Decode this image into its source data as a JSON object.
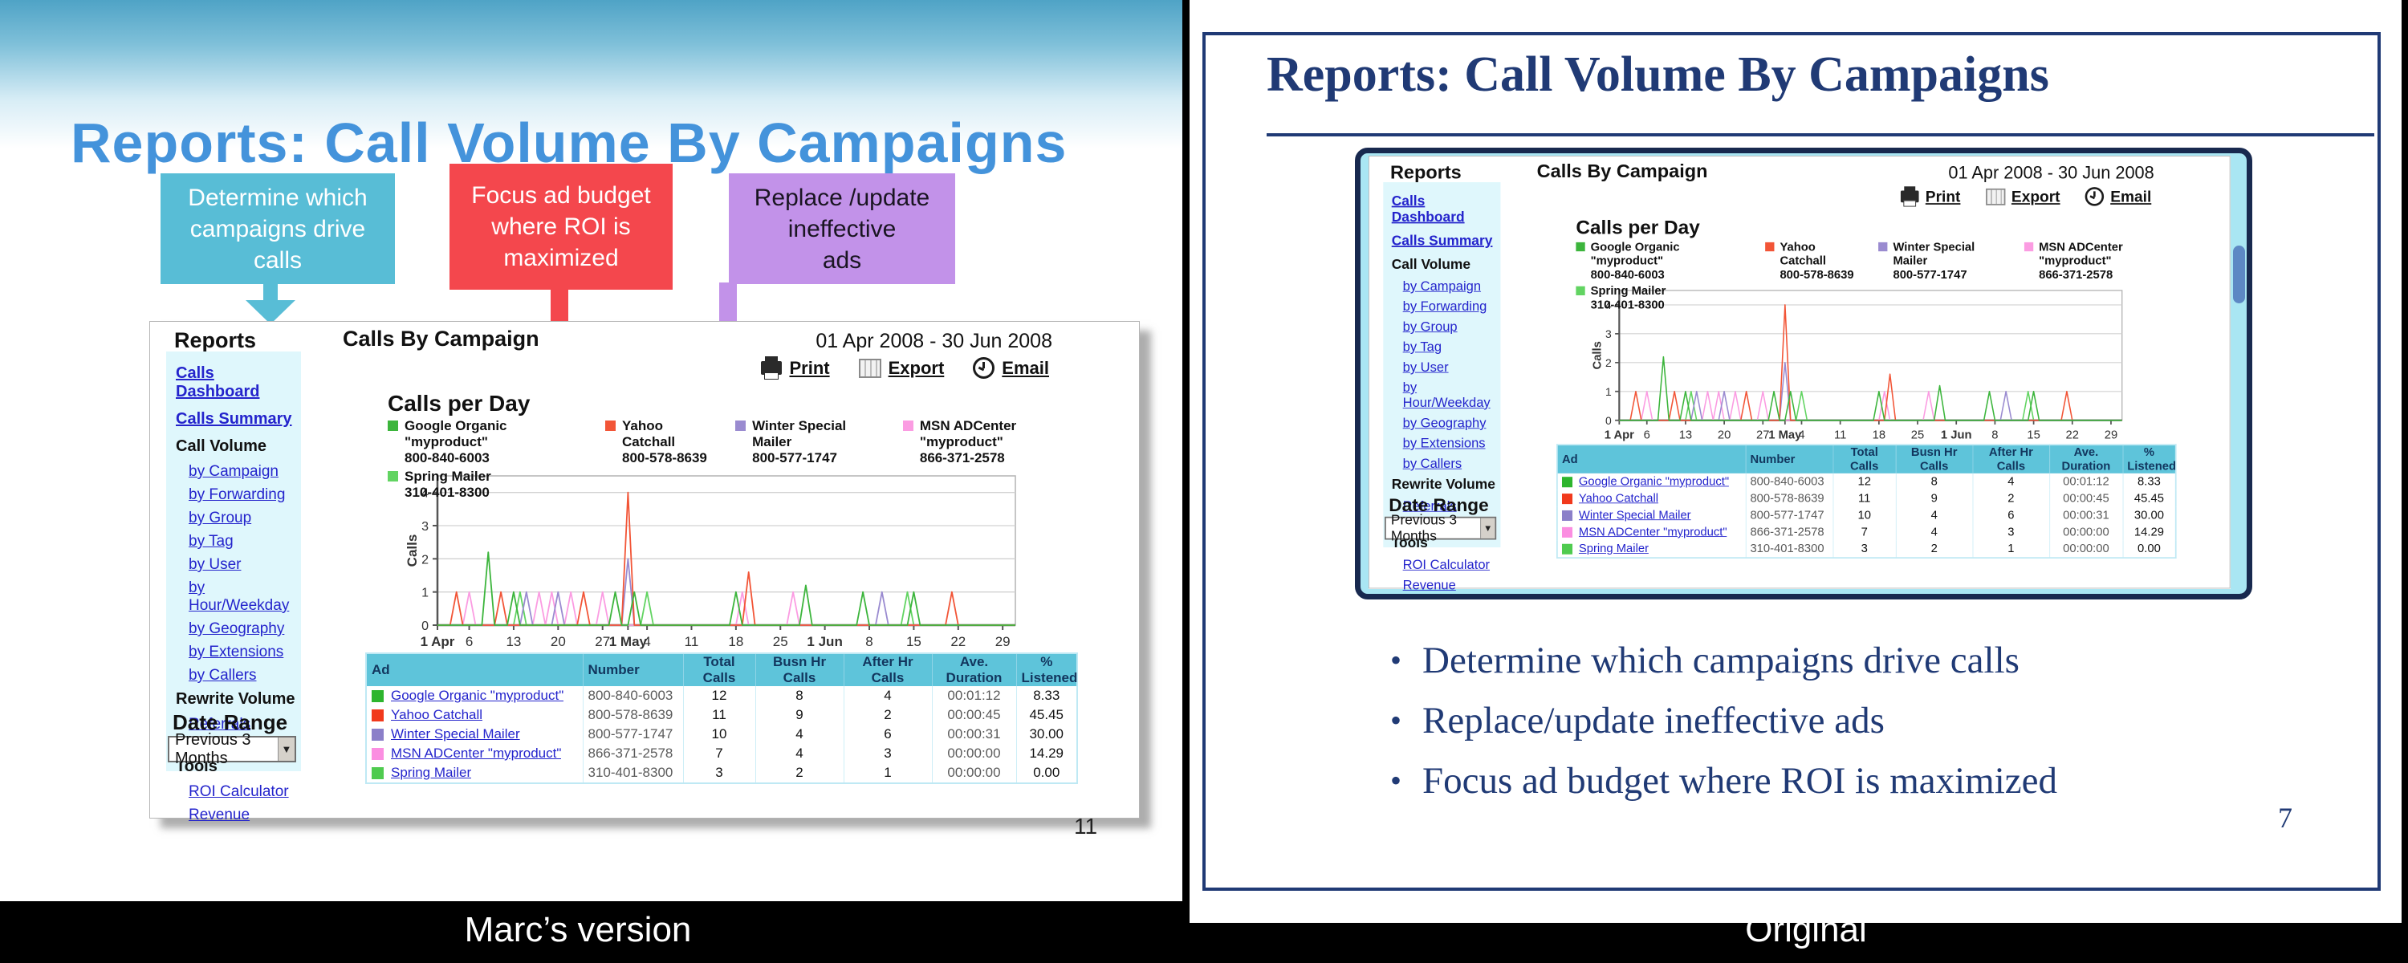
{
  "page": {
    "left_label": "Marc’s version",
    "right_label": "Original"
  },
  "left_slide": {
    "title": "Reports: Call Volume By Campaigns",
    "page_number": "11",
    "callouts": [
      {
        "text": "Determine which\ncampaigns drive\ncalls",
        "color": "#58bdd6"
      },
      {
        "text": "Focus ad budget\nwhere ROI is\nmaximized",
        "color": "#f4474d"
      },
      {
        "text": "Replace /update\nineffective\nads",
        "color": "#c292e9"
      }
    ]
  },
  "right_slide": {
    "title": "Reports: Call Volume By Campaigns",
    "page_number": "7",
    "bullets": [
      "Determine which campaigns drive calls",
      "Replace/update ineffective ads",
      "Focus ad budget where ROI is maximized"
    ]
  },
  "dashboard": {
    "brand": "Reports",
    "page_title": "Calls By Campaign",
    "date_range_text": "01 Apr 2008 - 30 Jun 2008",
    "actions": [
      {
        "label": "Print",
        "icon": "printer-icon"
      },
      {
        "label": "Export",
        "icon": "export-grid-icon"
      },
      {
        "label": "Email",
        "icon": "email-clock-icon"
      }
    ],
    "sidebar": {
      "top_links": [
        "Calls Dashboard",
        "Calls Summary"
      ],
      "sections": [
        {
          "header": "Call Volume",
          "links": [
            "by Campaign",
            "by Forwarding",
            "by Group",
            "by Tag",
            "by User",
            "by Hour/Weekday",
            "by Geography",
            "by Extensions",
            "by Callers"
          ]
        },
        {
          "header": "Rewrite Volume",
          "links": [
            "Referrals"
          ]
        },
        {
          "header": "Calculation Tools",
          "links": [
            "ROI Calculator",
            "Revenue"
          ]
        }
      ],
      "date_range_label": "Date Range",
      "date_range_value": "Previous 3 Months",
      "dropdown_icon": "▼"
    },
    "table": {
      "columns": [
        "Ad",
        "Number",
        "Total Calls",
        "Busn Hr Calls",
        "After Hr Calls",
        "Ave. Duration",
        "% Listened"
      ],
      "rows": [
        {
          "color": "#2db52d",
          "ad": "Google Organic \"myproduct\"",
          "number": "800-840-6003",
          "total": "12",
          "busn": "8",
          "after": "4",
          "duration": "00:01:12",
          "listened": "8.33"
        },
        {
          "color": "#f1391c",
          "ad": "Yahoo Catchall",
          "number": "800-578-8639",
          "total": "11",
          "busn": "9",
          "after": "2",
          "duration": "00:00:45",
          "listened": "45.45"
        },
        {
          "color": "#8b7fc9",
          "ad": "Winter Special Mailer",
          "number": "800-577-1747",
          "total": "10",
          "busn": "4",
          "after": "6",
          "duration": "00:00:31",
          "listened": "30.00"
        },
        {
          "color": "#fb8ee1",
          "ad": "MSN ADCenter \"myproduct\"",
          "number": "866-371-2578",
          "total": "7",
          "busn": "4",
          "after": "3",
          "duration": "00:00:00",
          "listened": "14.29"
        },
        {
          "color": "#4fcb4f",
          "ad": "Spring Mailer",
          "number": "310-401-8300",
          "total": "3",
          "busn": "2",
          "after": "1",
          "duration": "00:00:00",
          "listened": "0.00"
        }
      ]
    }
  },
  "chart_data": {
    "type": "line",
    "title": "Calls per Day",
    "ylabel": "Calls",
    "ylim": [
      0,
      4.5
    ],
    "yticks": [
      0,
      1,
      2,
      3,
      4
    ],
    "grid": true,
    "legend_position": "top",
    "x_unit": "days offset from 01 Apr 2008",
    "xticks": [
      {
        "day": 0,
        "label": "1 Apr",
        "bold": true
      },
      {
        "day": 5,
        "label": "6"
      },
      {
        "day": 12,
        "label": "13"
      },
      {
        "day": 19,
        "label": "20"
      },
      {
        "day": 26,
        "label": "27"
      },
      {
        "day": 30,
        "label": "1 May",
        "bold": true
      },
      {
        "day": 33,
        "label": "4"
      },
      {
        "day": 40,
        "label": "11"
      },
      {
        "day": 47,
        "label": "18"
      },
      {
        "day": 54,
        "label": "25"
      },
      {
        "day": 61,
        "label": "1 Jun",
        "bold": true
      },
      {
        "day": 68,
        "label": "8"
      },
      {
        "day": 75,
        "label": "15"
      },
      {
        "day": 82,
        "label": "22"
      },
      {
        "day": 89,
        "label": "29"
      }
    ],
    "series": [
      {
        "name": "Google Organic \"myproduct\"",
        "number": "800-840-6003",
        "color": "#3cb53c",
        "spikes": [
          [
            8,
            2.2
          ],
          [
            12,
            1
          ],
          [
            28,
            1
          ],
          [
            31,
            1
          ],
          [
            47,
            1
          ],
          [
            58,
            1.2
          ],
          [
            67,
            1
          ],
          [
            75,
            1
          ]
        ]
      },
      {
        "name": "Yahoo Catchall",
        "number": "800-578-8639",
        "color": "#f25537",
        "spikes": [
          [
            3,
            1
          ],
          [
            10,
            1
          ],
          [
            23,
            1
          ],
          [
            30,
            4
          ],
          [
            49,
            1.6
          ],
          [
            81,
            1
          ]
        ]
      },
      {
        "name": "Winter Special Mailer",
        "number": "800-577-1747",
        "color": "#9a8bd0",
        "spikes": [
          [
            14,
            1
          ],
          [
            19,
            1
          ],
          [
            30,
            2
          ],
          [
            70,
            1
          ]
        ]
      },
      {
        "name": "MSN ADCenter \"myproduct\"",
        "number": "866-371-2578",
        "color": "#fb9ce2",
        "spikes": [
          [
            5,
            1
          ],
          [
            16,
            1
          ],
          [
            18,
            1
          ],
          [
            21,
            1
          ],
          [
            26,
            1
          ],
          [
            48,
            1
          ],
          [
            56,
            1
          ]
        ]
      },
      {
        "name": "Spring Mailer",
        "number": "310-401-8300",
        "color": "#62d462",
        "spikes": [
          [
            13,
            1
          ],
          [
            33,
            1
          ],
          [
            74,
            1
          ]
        ]
      }
    ]
  }
}
